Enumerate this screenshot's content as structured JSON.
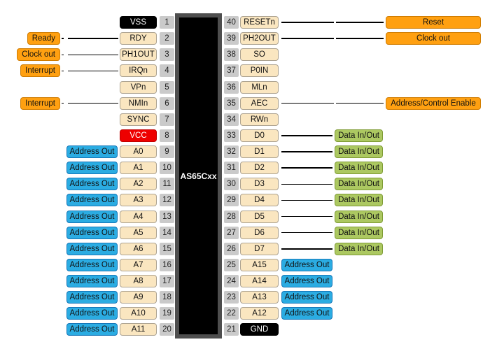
{
  "chip": {
    "label": "AS65Cxx"
  },
  "colors": {
    "control_bg": "#FFA011",
    "control_border": "#D07C00",
    "address_bg": "#2BACE2",
    "address_border": "#1576B8",
    "data_bg": "#ACC861",
    "data_border": "#7E9B34",
    "pin_bg": "#FAE6C0",
    "pin_border": "#ADA391",
    "number_bg": "#CACACA",
    "ground_bg": "#000000",
    "power_bg": "#EE0000",
    "chip_bg": "#000000",
    "chip_border": "#4E4E4E",
    "line": "#000000"
  },
  "pins": {
    "left": [
      {
        "num": "1",
        "name": "VSS",
        "kind": "ground"
      },
      {
        "num": "2",
        "name": "RDY",
        "kind": "signal",
        "func": "Ready",
        "funcType": "control"
      },
      {
        "num": "3",
        "name": "PH1OUT",
        "kind": "signal",
        "func": "Clock out",
        "funcType": "control"
      },
      {
        "num": "4",
        "name": "IRQn",
        "kind": "signal",
        "func": "Interrupt",
        "funcType": "control"
      },
      {
        "num": "5",
        "name": "VPn",
        "kind": "signal"
      },
      {
        "num": "6",
        "name": "NMIn",
        "kind": "signal",
        "func": "Interrupt",
        "funcType": "control"
      },
      {
        "num": "7",
        "name": "SYNC",
        "kind": "signal"
      },
      {
        "num": "8",
        "name": "VCC",
        "kind": "power"
      },
      {
        "num": "9",
        "name": "A0",
        "kind": "signal",
        "func": "Address Out",
        "funcType": "address"
      },
      {
        "num": "10",
        "name": "A1",
        "kind": "signal",
        "func": "Address Out",
        "funcType": "address"
      },
      {
        "num": "11",
        "name": "A2",
        "kind": "signal",
        "func": "Address Out",
        "funcType": "address"
      },
      {
        "num": "12",
        "name": "A3",
        "kind": "signal",
        "func": "Address Out",
        "funcType": "address"
      },
      {
        "num": "13",
        "name": "A4",
        "kind": "signal",
        "func": "Address Out",
        "funcType": "address"
      },
      {
        "num": "14",
        "name": "A5",
        "kind": "signal",
        "func": "Address Out",
        "funcType": "address"
      },
      {
        "num": "15",
        "name": "A6",
        "kind": "signal",
        "func": "Address Out",
        "funcType": "address"
      },
      {
        "num": "16",
        "name": "A7",
        "kind": "signal",
        "func": "Address Out",
        "funcType": "address"
      },
      {
        "num": "17",
        "name": "A8",
        "kind": "signal",
        "func": "Address Out",
        "funcType": "address"
      },
      {
        "num": "18",
        "name": "A9",
        "kind": "signal",
        "func": "Address Out",
        "funcType": "address"
      },
      {
        "num": "19",
        "name": "A10",
        "kind": "signal",
        "func": "Address Out",
        "funcType": "address"
      },
      {
        "num": "20",
        "name": "A11",
        "kind": "signal",
        "func": "Address Out",
        "funcType": "address"
      }
    ],
    "right": [
      {
        "num": "40",
        "name": "RESETn",
        "kind": "signal",
        "func": "Reset",
        "funcType": "control"
      },
      {
        "num": "39",
        "name": "PH2OUT",
        "kind": "signal",
        "func": "Clock out",
        "funcType": "control"
      },
      {
        "num": "38",
        "name": "SO",
        "kind": "signal"
      },
      {
        "num": "37",
        "name": "P0IN",
        "kind": "signal"
      },
      {
        "num": "36",
        "name": "MLn",
        "kind": "signal"
      },
      {
        "num": "35",
        "name": "AEC",
        "kind": "signal",
        "func": "Address/Control Enable",
        "funcType": "control"
      },
      {
        "num": "34",
        "name": "RWn",
        "kind": "signal"
      },
      {
        "num": "33",
        "name": "D0",
        "kind": "signal",
        "func": "Data In/Out",
        "funcType": "data"
      },
      {
        "num": "32",
        "name": "D1",
        "kind": "signal",
        "func": "Data In/Out",
        "funcType": "data"
      },
      {
        "num": "31",
        "name": "D2",
        "kind": "signal",
        "func": "Data In/Out",
        "funcType": "data"
      },
      {
        "num": "30",
        "name": "D3",
        "kind": "signal",
        "func": "Data In/Out",
        "funcType": "data"
      },
      {
        "num": "29",
        "name": "D4",
        "kind": "signal",
        "func": "Data In/Out",
        "funcType": "data"
      },
      {
        "num": "28",
        "name": "D5",
        "kind": "signal",
        "func": "Data In/Out",
        "funcType": "data"
      },
      {
        "num": "27",
        "name": "D6",
        "kind": "signal",
        "func": "Data In/Out",
        "funcType": "data"
      },
      {
        "num": "26",
        "name": "D7",
        "kind": "signal",
        "func": "Data In/Out",
        "funcType": "data"
      },
      {
        "num": "25",
        "name": "A15",
        "kind": "signal",
        "func": "Address Out",
        "funcType": "address"
      },
      {
        "num": "24",
        "name": "A14",
        "kind": "signal",
        "func": "Address Out",
        "funcType": "address"
      },
      {
        "num": "23",
        "name": "A13",
        "kind": "signal",
        "func": "Address Out",
        "funcType": "address"
      },
      {
        "num": "22",
        "name": "A12",
        "kind": "signal",
        "func": "Address Out",
        "funcType": "address"
      },
      {
        "num": "21",
        "name": "GND",
        "kind": "ground"
      }
    ]
  }
}
